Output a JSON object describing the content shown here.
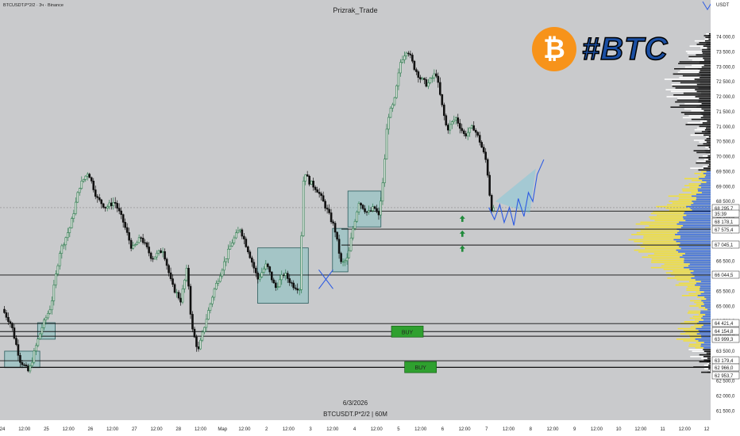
{
  "header": {
    "symbol_line": "BTCUSDT.P*2/2 · 3ч · Binance",
    "author": "Prizrak_Trade",
    "currency": "USDT"
  },
  "footer": {
    "date": "6/3/2026",
    "caption": "BTCUSDT.P*2/2 | 60M"
  },
  "logo": {
    "text": "#BTC",
    "coin_color": "#f7931a"
  },
  "buy_labels": [
    {
      "text": "BUY",
      "price": 64154.8,
      "date_index": 9.2
    },
    {
      "text": "BUY",
      "price": 62966.0,
      "date_index": 9.5
    }
  ],
  "chart_data": {
    "type": "candlestick",
    "x_ticks": [
      {
        "label": "24",
        "i": 0
      },
      {
        "label": "12:00",
        "i": 0.5
      },
      {
        "label": "25",
        "i": 1
      },
      {
        "label": "12:00",
        "i": 1.5
      },
      {
        "label": "26",
        "i": 2
      },
      {
        "label": "12:00",
        "i": 2.5
      },
      {
        "label": "27",
        "i": 3
      },
      {
        "label": "12:00",
        "i": 3.5
      },
      {
        "label": "28",
        "i": 4
      },
      {
        "label": "12:00",
        "i": 4.5
      },
      {
        "label": "Мар",
        "i": 5
      },
      {
        "label": "12:00",
        "i": 5.5
      },
      {
        "label": "2",
        "i": 6
      },
      {
        "label": "12:00",
        "i": 6.5
      },
      {
        "label": "3",
        "i": 7
      },
      {
        "label": "12:00",
        "i": 7.5
      },
      {
        "label": "4",
        "i": 8
      },
      {
        "label": "12:00",
        "i": 8.5
      },
      {
        "label": "5",
        "i": 9
      },
      {
        "label": "12:00",
        "i": 9.5
      },
      {
        "label": "6",
        "i": 10
      },
      {
        "label": "12:00",
        "i": 10.5
      },
      {
        "label": "7",
        "i": 11
      },
      {
        "label": "12:00",
        "i": 11.5
      },
      {
        "label": "8",
        "i": 12
      },
      {
        "label": "12:00",
        "i": 12.5
      },
      {
        "label": "9",
        "i": 13
      },
      {
        "label": "12:00",
        "i": 13.5
      },
      {
        "label": "10",
        "i": 14
      },
      {
        "label": "12:00",
        "i": 14.5
      },
      {
        "label": "11",
        "i": 15
      },
      {
        "label": "12:00",
        "i": 15.5
      },
      {
        "label": "12",
        "i": 16
      }
    ],
    "y_ticks": [
      74000,
      73500,
      73000,
      72500,
      72000,
      71500,
      71000,
      70500,
      70000,
      69500,
      69000,
      68500,
      68000,
      67500,
      67000,
      66500,
      66000,
      65500,
      65000,
      64500,
      64000,
      63500,
      63000,
      62500,
      62000,
      61500
    ],
    "ylim": [
      61100,
      74900
    ],
    "price_labels": [
      "68 295,7",
      "35:39",
      "68 178,1",
      "67 575,4",
      "67 045,1",
      "66 044,5",
      "64 421,4",
      "64 154,8",
      "63 999,3",
      "63 179,4",
      "62 966,0",
      "62 953,7"
    ],
    "levels": [
      68178.1,
      67575.4,
      67045.1,
      66044.5,
      64421.4,
      64154.8,
      63999.3,
      63179.4,
      62966.0,
      62953.7
    ],
    "current_price": 68295.7,
    "path": [
      [
        0.0,
        64900
      ],
      [
        0.2,
        64400
      ],
      [
        0.4,
        63200
      ],
      [
        0.6,
        62800
      ],
      [
        0.75,
        63600
      ],
      [
        0.9,
        64300
      ],
      [
        1.1,
        65000
      ],
      [
        1.3,
        66800
      ],
      [
        1.55,
        67700
      ],
      [
        1.75,
        69000
      ],
      [
        1.95,
        69500
      ],
      [
        2.15,
        68600
      ],
      [
        2.35,
        68300
      ],
      [
        2.55,
        68500
      ],
      [
        2.75,
        67800
      ],
      [
        2.95,
        66900
      ],
      [
        3.15,
        67300
      ],
      [
        3.4,
        66600
      ],
      [
        3.65,
        66900
      ],
      [
        3.85,
        65700
      ],
      [
        4.05,
        65200
      ],
      [
        4.2,
        66300
      ],
      [
        4.3,
        64300
      ],
      [
        4.45,
        63500
      ],
      [
        4.6,
        64400
      ],
      [
        4.8,
        65500
      ],
      [
        5.0,
        66300
      ],
      [
        5.2,
        67100
      ],
      [
        5.4,
        67600
      ],
      [
        5.6,
        66800
      ],
      [
        5.8,
        65900
      ],
      [
        6.0,
        66400
      ],
      [
        6.2,
        65600
      ],
      [
        6.4,
        66100
      ],
      [
        6.6,
        65700
      ],
      [
        6.75,
        65600
      ],
      [
        6.85,
        69600
      ],
      [
        6.95,
        69200
      ],
      [
        7.15,
        68900
      ],
      [
        7.35,
        68300
      ],
      [
        7.55,
        67600
      ],
      [
        7.7,
        66400
      ],
      [
        7.85,
        66600
      ],
      [
        7.95,
        67500
      ],
      [
        8.1,
        68500
      ],
      [
        8.3,
        68100
      ],
      [
        8.45,
        68300
      ],
      [
        8.55,
        68000
      ],
      [
        8.65,
        69200
      ],
      [
        8.75,
        71300
      ],
      [
        8.9,
        71800
      ],
      [
        9.05,
        73200
      ],
      [
        9.2,
        73600
      ],
      [
        9.35,
        73000
      ],
      [
        9.5,
        72600
      ],
      [
        9.65,
        72400
      ],
      [
        9.85,
        72800
      ],
      [
        10.0,
        71600
      ],
      [
        10.1,
        70900
      ],
      [
        10.3,
        71300
      ],
      [
        10.5,
        70700
      ],
      [
        10.7,
        71000
      ],
      [
        10.85,
        70500
      ],
      [
        11.0,
        69800
      ],
      [
        11.1,
        68300
      ],
      [
        11.18,
        68178
      ]
    ],
    "boxes": [
      {
        "i0": 0.05,
        "i1": 0.85,
        "p0": 62950,
        "p1": 63500
      },
      {
        "i0": 0.8,
        "i1": 1.2,
        "p0": 63900,
        "p1": 64450
      },
      {
        "i0": 5.8,
        "i1": 6.95,
        "p0": 65100,
        "p1": 66950
      },
      {
        "i0": 7.5,
        "i1": 7.85,
        "p0": 66150,
        "p1": 67600
      },
      {
        "i0": 7.85,
        "i1": 8.6,
        "p0": 67650,
        "p1": 68850
      }
    ],
    "up_arrows": [
      {
        "i": 10.45,
        "p": 67900
      },
      {
        "i": 10.45,
        "p": 67400
      },
      {
        "i": 10.45,
        "p": 66900
      }
    ],
    "x_mark": {
      "i": 7.35,
      "p": 65900
    },
    "projection": [
      [
        11.05,
        68300
      ],
      [
        11.18,
        67900
      ],
      [
        11.3,
        68400
      ],
      [
        11.4,
        67800
      ],
      [
        11.52,
        68300
      ],
      [
        11.62,
        67700
      ],
      [
        11.72,
        68600
      ],
      [
        11.85,
        68000
      ],
      [
        11.95,
        68800
      ],
      [
        12.05,
        68500
      ],
      [
        12.15,
        69400
      ],
      [
        12.3,
        69900
      ]
    ],
    "wedge": [
      [
        11.2,
        68500
      ],
      [
        11.98,
        68100
      ],
      [
        12.12,
        69600
      ]
    ]
  }
}
